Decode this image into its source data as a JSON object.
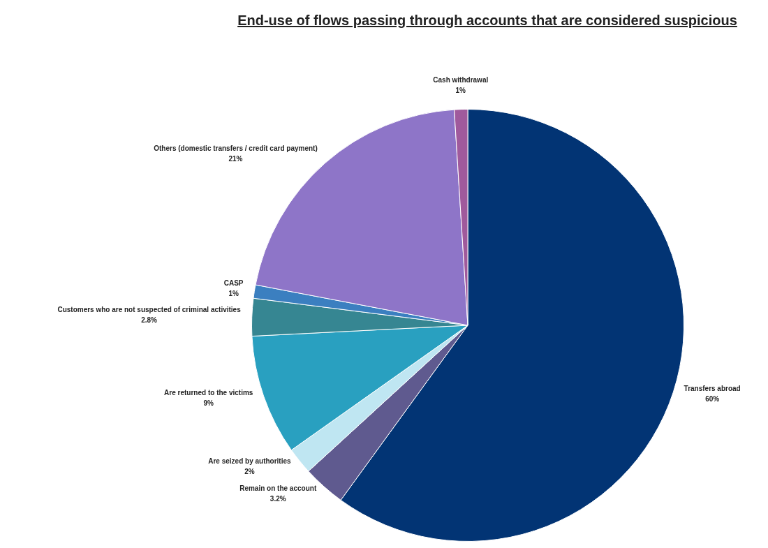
{
  "chart_data": {
    "type": "pie",
    "title": "End-use of flows passing through accounts that are considered suspicious",
    "categories": [
      "Transfers abroad",
      "Remain on the account",
      "Are seized by authorities",
      "Are returned to the victims",
      "Customers who are not suspected of criminal activities",
      "CASP",
      "Others (domestic transfers / credit card payment)",
      "Cash withdrawal"
    ],
    "values": [
      60,
      3.2,
      2,
      9,
      2.8,
      1,
      21,
      1
    ],
    "value_labels": [
      "60%",
      "3.2%",
      "2%",
      "9%",
      "2.8%",
      "1%",
      "21%",
      "1%"
    ],
    "colors": [
      "#023474",
      "#5f5a8f",
      "#bfe6f2",
      "#29a0c0",
      "#368692",
      "#3b7fc0",
      "#8e75c8",
      "#a05a9c"
    ],
    "legend": false
  }
}
